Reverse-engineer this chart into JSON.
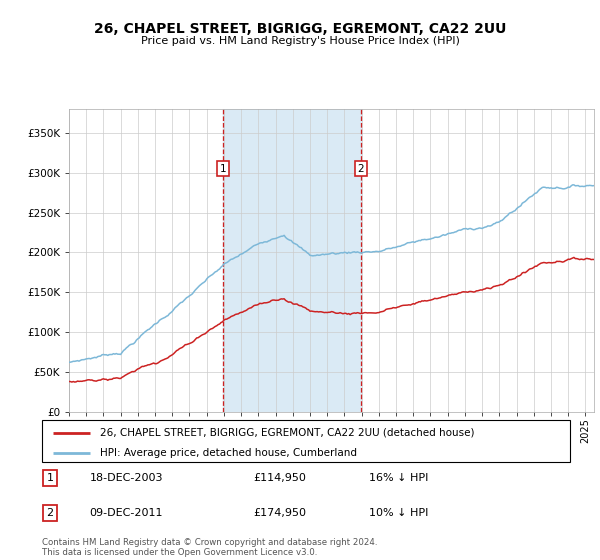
{
  "title": "26, CHAPEL STREET, BIGRIGG, EGREMONT, CA22 2UU",
  "subtitle": "Price paid vs. HM Land Registry's House Price Index (HPI)",
  "legend_line1": "26, CHAPEL STREET, BIGRIGG, EGREMONT, CA22 2UU (detached house)",
  "legend_line2": "HPI: Average price, detached house, Cumberland",
  "sale1_label": "1",
  "sale1_date": "18-DEC-2003",
  "sale1_price": "£114,950",
  "sale1_hpi": "16% ↓ HPI",
  "sale1_year": 2003.96,
  "sale1_value": 114950,
  "sale2_label": "2",
  "sale2_date": "09-DEC-2011",
  "sale2_price": "£174,950",
  "sale2_hpi": "10% ↓ HPI",
  "sale2_year": 2011.94,
  "sale2_value": 174950,
  "hpi_color": "#7db8d8",
  "price_color": "#cc2222",
  "vline_color": "#cc2222",
  "shade_color": "#daeaf5",
  "footnote": "Contains HM Land Registry data © Crown copyright and database right 2024.\nThis data is licensed under the Open Government Licence v3.0.",
  "ylim": [
    0,
    380000
  ],
  "yticks": [
    0,
    50000,
    100000,
    150000,
    200000,
    250000,
    300000,
    350000
  ],
  "xstart": 1995,
  "xend": 2025.5
}
